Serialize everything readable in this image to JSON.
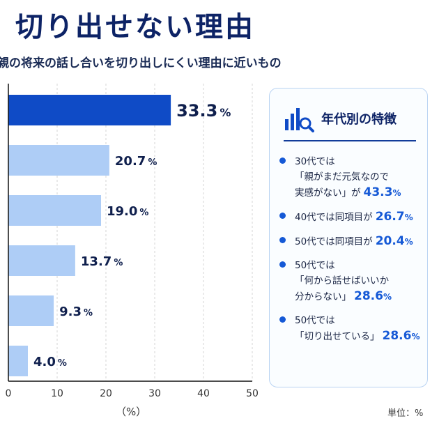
{
  "title": "切り出せない理由",
  "subtitle": "親の将来の話し合いを切り出しにくい理由に近いもの",
  "chart_data": {
    "type": "bar",
    "orientation": "horizontal",
    "categories": [
      "",
      "",
      "",
      "",
      "",
      ""
    ],
    "values": [
      33.3,
      20.7,
      19.0,
      13.7,
      9.3,
      4.0
    ],
    "value_labels": [
      "33.3",
      "20.7",
      "19.0",
      "13.7",
      "9.3",
      "4.0"
    ],
    "value_unit": "%",
    "xlabel": "（%）",
    "xlim": [
      0,
      50
    ],
    "xticks": [
      0,
      10,
      20,
      30,
      40,
      50
    ],
    "grid": true,
    "highlight_index": 0,
    "colors": {
      "highlight": "#0f4bc6",
      "normal": "#aecdf6",
      "axis": "#111111",
      "grid": "#d5d5d5"
    }
  },
  "panel": {
    "title": "年代別の特徴",
    "icon": "bar-chart-magnifier-icon",
    "items": [
      {
        "lines": [
          "30代では",
          "「親がまだ元気なので",
          "実感がない」が"
        ],
        "value": "43.3",
        "unit": "%"
      },
      {
        "lines": [
          "40代では同項目が"
        ],
        "value": "26.7",
        "unit": "%"
      },
      {
        "lines": [
          "50代では同項目が"
        ],
        "value": "20.4",
        "unit": "%"
      },
      {
        "lines": [
          "50代では",
          "「何から話せばいいか",
          "分からない」"
        ],
        "value": "28.6",
        "unit": "%"
      },
      {
        "lines": [
          "50代では",
          "「切り出せている」"
        ],
        "value": "28.6",
        "unit": "%"
      }
    ]
  },
  "unit_note": "単位：%"
}
